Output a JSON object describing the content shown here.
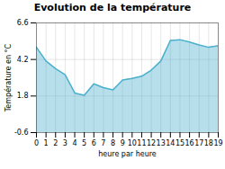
{
  "chart_data": {
    "type": "area",
    "title": "Evolution de la température",
    "xlabel": "heure par heure",
    "ylabel": "Température en °C",
    "x": [
      0,
      1,
      2,
      3,
      4,
      5,
      6,
      7,
      8,
      9,
      10,
      11,
      12,
      13,
      14,
      15,
      16,
      17,
      18,
      19
    ],
    "values": [
      5.0,
      4.1,
      3.6,
      3.2,
      2.0,
      1.85,
      2.6,
      2.35,
      2.2,
      2.85,
      2.95,
      3.1,
      3.5,
      4.1,
      5.45,
      5.5,
      5.35,
      5.15,
      5.0,
      5.1
    ],
    "color": "#4ab0cc",
    "xlim": [
      0,
      19
    ],
    "xticks": [
      0,
      1,
      2,
      3,
      4,
      5,
      6,
      7,
      8,
      9,
      10,
      11,
      12,
      13,
      14,
      15,
      16,
      17,
      18,
      19
    ],
    "ylim": [
      -0.6,
      6.6
    ],
    "yticks": [
      -0.6,
      1.8,
      4.2,
      6.6
    ],
    "grid": true
  }
}
